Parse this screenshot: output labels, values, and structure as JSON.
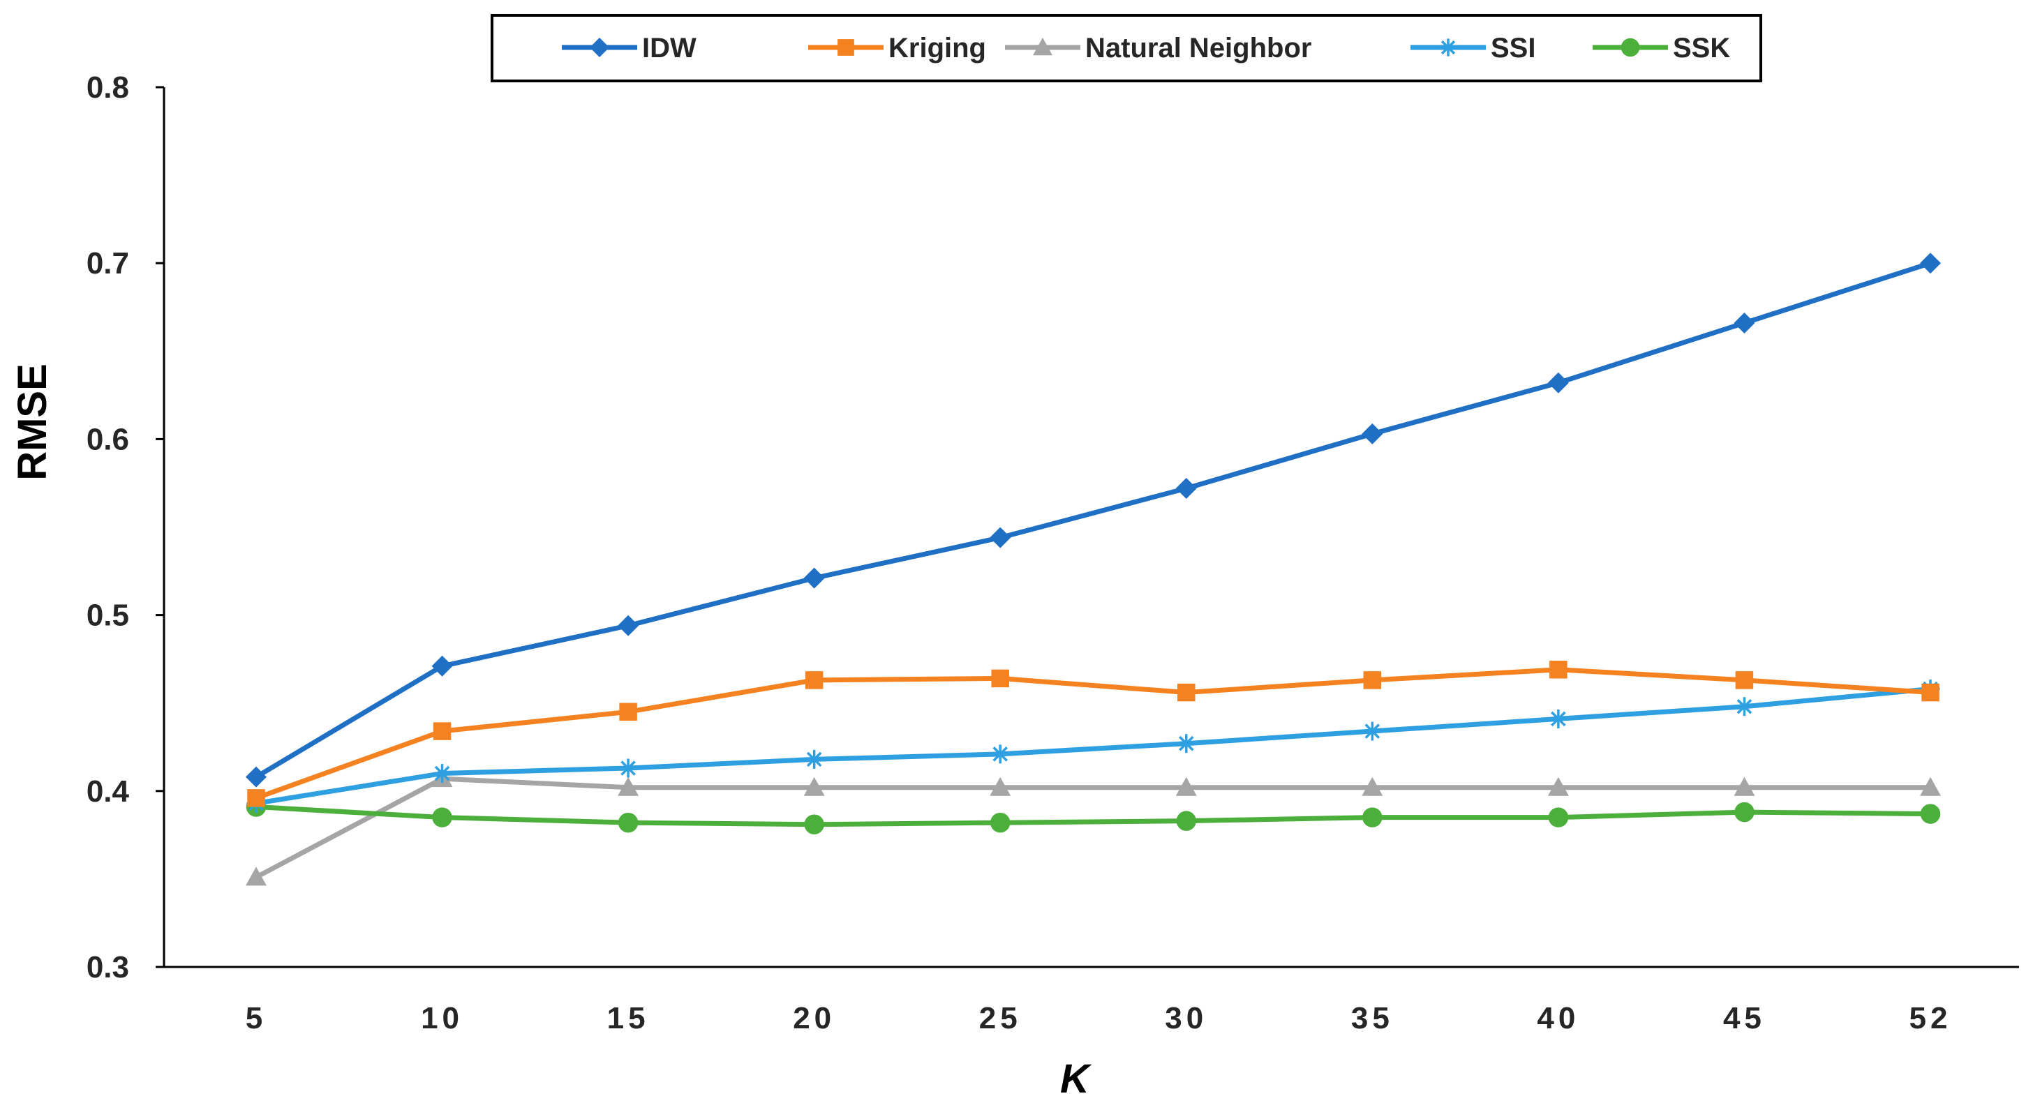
{
  "chart_data": {
    "type": "line",
    "title": "",
    "xlabel": "K",
    "ylabel": "RMSE",
    "categories": [
      "5",
      "10",
      "15",
      "20",
      "25",
      "30",
      "35",
      "40",
      "45",
      "52"
    ],
    "ylim": [
      0.3,
      0.8
    ],
    "yticks": [
      "0.3",
      "0.4",
      "0.5",
      "0.6",
      "0.7",
      "0.8"
    ],
    "grid": false,
    "legend_position": "top",
    "series": [
      {
        "name": "IDW",
        "color": "#1F6FC5",
        "marker": "diamond",
        "values": [
          0.408,
          0.471,
          0.494,
          0.521,
          0.544,
          0.572,
          0.603,
          0.632,
          0.666,
          0.7
        ]
      },
      {
        "name": "Kriging",
        "color": "#F58220",
        "marker": "square",
        "values": [
          0.396,
          0.434,
          0.445,
          0.463,
          0.464,
          0.456,
          0.463,
          0.469,
          0.463,
          0.456
        ]
      },
      {
        "name": "Natural Neighbor",
        "color": "#A5A5A5",
        "marker": "triangle",
        "values": [
          0.351,
          0.407,
          0.402,
          0.402,
          0.402,
          0.402,
          0.402,
          0.402,
          0.402,
          0.402
        ]
      },
      {
        "name": "SSI",
        "color": "#2E9FE0",
        "marker": "star",
        "values": [
          0.393,
          0.41,
          0.413,
          0.418,
          0.421,
          0.427,
          0.434,
          0.441,
          0.448,
          0.458
        ]
      },
      {
        "name": "SSK",
        "color": "#4CAF3C",
        "marker": "circle",
        "values": [
          0.391,
          0.385,
          0.382,
          0.381,
          0.382,
          0.383,
          0.385,
          0.385,
          0.388,
          0.387
        ]
      }
    ]
  }
}
